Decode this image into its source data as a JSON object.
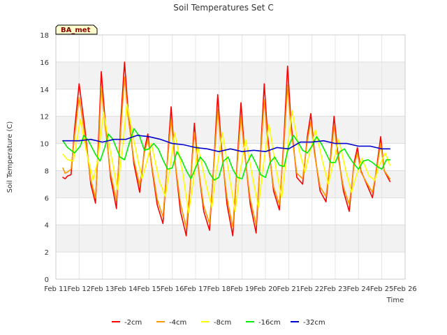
{
  "chart_data": {
    "type": "line",
    "title": "Soil Temperatures Set C",
    "xlabel": "Time",
    "ylabel": "Soil Temperature (C)",
    "badge": "BA_met",
    "ylim": [
      0,
      18
    ],
    "yticks": [
      0,
      2,
      4,
      6,
      8,
      10,
      12,
      14,
      16,
      18
    ],
    "xlim": [
      11,
      26
    ],
    "xticks": [
      {
        "x": 11,
        "label": "Feb 11"
      },
      {
        "x": 12,
        "label": "Feb 12"
      },
      {
        "x": 13,
        "label": "Feb 13"
      },
      {
        "x": 14,
        "label": "Feb 14"
      },
      {
        "x": 15,
        "label": "Feb 15"
      },
      {
        "x": 16,
        "label": "Feb 16"
      },
      {
        "x": 17,
        "label": "Feb 17"
      },
      {
        "x": 18,
        "label": "Feb 18"
      },
      {
        "x": 19,
        "label": "Feb 19"
      },
      {
        "x": 20,
        "label": "Feb 20"
      },
      {
        "x": 21,
        "label": "Feb 21"
      },
      {
        "x": 22,
        "label": "Feb 22"
      },
      {
        "x": 23,
        "label": "Feb 23"
      },
      {
        "x": 24,
        "label": "Feb 24"
      },
      {
        "x": 25,
        "label": "Feb 25"
      },
      {
        "x": 26,
        "label": "Feb 26"
      }
    ],
    "grid": true,
    "legend_position": "bottom",
    "series": [
      {
        "name": "-2cm",
        "color": "#ff0000",
        "x": [
          11.3,
          11.4,
          11.5,
          11.65,
          11.8,
          12.0,
          12.25,
          12.5,
          12.7,
          12.85,
          12.95,
          13.1,
          13.35,
          13.6,
          13.8,
          13.95,
          14.1,
          14.35,
          14.6,
          14.8,
          14.95,
          15.1,
          15.35,
          15.6,
          15.8,
          15.95,
          16.1,
          16.35,
          16.6,
          16.8,
          16.95,
          17.1,
          17.35,
          17.6,
          17.8,
          17.95,
          18.1,
          18.35,
          18.6,
          18.8,
          18.95,
          19.1,
          19.35,
          19.6,
          19.8,
          19.95,
          20.1,
          20.35,
          20.6,
          20.8,
          20.95,
          21.1,
          21.35,
          21.6,
          21.8,
          21.95,
          22.1,
          22.35,
          22.6,
          22.8,
          22.95,
          23.1,
          23.35,
          23.6,
          23.8,
          23.95,
          24.1,
          24.35,
          24.6,
          24.8,
          24.95,
          25.1,
          25.35
        ],
        "y": [
          7.5,
          7.4,
          7.6,
          7.7,
          11.0,
          14.4,
          11.0,
          7.0,
          5.6,
          11.0,
          15.3,
          12.0,
          7.5,
          5.2,
          12.0,
          16.0,
          12.5,
          8.5,
          6.4,
          9.5,
          10.7,
          8.5,
          5.5,
          4.1,
          9.0,
          12.7,
          9.0,
          5.0,
          3.2,
          7.5,
          11.5,
          8.5,
          5.0,
          3.6,
          9.0,
          13.6,
          10.0,
          5.5,
          3.2,
          9.0,
          13.0,
          9.5,
          5.5,
          3.4,
          9.5,
          14.4,
          10.5,
          6.5,
          5.1,
          10.5,
          15.7,
          11.5,
          7.5,
          7.0,
          10.5,
          12.2,
          9.5,
          6.5,
          5.7,
          9.0,
          12.0,
          9.5,
          6.5,
          5.0,
          8.5,
          9.7,
          8.0,
          7.0,
          6.0,
          8.5,
          10.5,
          8.0,
          7.2
        ]
      },
      {
        "name": "-4cm",
        "color": "#ff9900",
        "x": [
          11.3,
          11.4,
          11.5,
          11.65,
          11.8,
          12.0,
          12.25,
          12.5,
          12.7,
          12.85,
          12.95,
          13.1,
          13.35,
          13.6,
          13.8,
          13.95,
          14.1,
          14.35,
          14.6,
          14.8,
          14.95,
          15.1,
          15.35,
          15.6,
          15.8,
          15.95,
          16.1,
          16.35,
          16.6,
          16.8,
          16.95,
          17.1,
          17.35,
          17.6,
          17.8,
          17.95,
          18.1,
          18.35,
          18.6,
          18.8,
          18.95,
          19.1,
          19.35,
          19.6,
          19.8,
          19.95,
          20.1,
          20.35,
          20.6,
          20.8,
          20.95,
          21.1,
          21.35,
          21.6,
          21.8,
          21.95,
          22.1,
          22.35,
          22.6,
          22.8,
          22.95,
          23.1,
          23.35,
          23.6,
          23.8,
          23.95,
          24.1,
          24.35,
          24.6,
          24.8,
          24.95,
          25.1,
          25.35
        ],
        "y": [
          8.2,
          7.8,
          7.9,
          8.1,
          10.5,
          13.4,
          10.5,
          7.3,
          6.0,
          10.3,
          14.2,
          11.5,
          7.8,
          5.8,
          11.3,
          14.9,
          12.0,
          8.8,
          6.9,
          9.3,
          10.3,
          8.6,
          5.9,
          4.6,
          8.8,
          11.8,
          8.9,
          5.6,
          3.8,
          7.5,
          10.8,
          8.4,
          5.4,
          4.1,
          8.8,
          12.5,
          9.6,
          6.0,
          3.8,
          8.7,
          12.0,
          9.3,
          5.9,
          4.0,
          9.2,
          13.2,
          10.0,
          6.8,
          5.5,
          10.0,
          14.3,
          11.0,
          7.8,
          7.4,
          10.2,
          11.6,
          9.3,
          6.8,
          6.1,
          8.8,
          11.3,
          9.2,
          6.8,
          5.5,
          8.3,
          9.3,
          7.9,
          7.1,
          6.4,
          8.3,
          10.0,
          8.0,
          7.4
        ]
      },
      {
        "name": "-8cm",
        "color": "#ffff00",
        "x": [
          11.3,
          11.5,
          11.75,
          12.05,
          12.3,
          12.6,
          12.8,
          13.05,
          13.3,
          13.65,
          13.85,
          14.05,
          14.35,
          14.7,
          14.9,
          15.1,
          15.45,
          15.7,
          15.9,
          16.1,
          16.45,
          16.7,
          16.9,
          17.1,
          17.45,
          17.7,
          17.9,
          18.15,
          18.45,
          18.7,
          18.9,
          19.15,
          19.45,
          19.7,
          19.9,
          20.15,
          20.45,
          20.7,
          20.9,
          21.15,
          21.45,
          21.7,
          21.9,
          22.15,
          22.45,
          22.7,
          22.9,
          23.15,
          23.45,
          23.7,
          23.9,
          24.15,
          24.45,
          24.7,
          24.9,
          25.15,
          25.35
        ],
        "y": [
          9.2,
          8.8,
          8.7,
          11.8,
          9.5,
          7.3,
          8.8,
          12.3,
          9.8,
          6.6,
          9.5,
          12.9,
          10.2,
          7.4,
          8.6,
          10.0,
          7.2,
          6.1,
          8.2,
          10.8,
          7.8,
          4.9,
          7.2,
          9.8,
          7.0,
          5.3,
          8.0,
          10.8,
          7.6,
          5.0,
          7.8,
          10.3,
          7.5,
          5.3,
          8.3,
          11.4,
          8.2,
          6.0,
          9.0,
          12.4,
          9.5,
          7.9,
          9.3,
          11.0,
          8.7,
          7.0,
          8.5,
          10.3,
          8.0,
          6.4,
          7.6,
          8.9,
          7.6,
          7.3,
          8.4,
          9.3,
          8.4
        ]
      },
      {
        "name": "-16cm",
        "color": "#00ee00",
        "x": [
          11.3,
          11.5,
          11.8,
          12.05,
          12.2,
          12.4,
          12.7,
          12.9,
          13.1,
          13.25,
          13.45,
          13.75,
          13.95,
          14.15,
          14.35,
          14.6,
          14.8,
          15.0,
          15.2,
          15.4,
          15.6,
          15.8,
          16.0,
          16.2,
          16.4,
          16.6,
          16.8,
          17.0,
          17.2,
          17.4,
          17.6,
          17.8,
          18.0,
          18.2,
          18.4,
          18.6,
          18.8,
          19.0,
          19.2,
          19.4,
          19.6,
          19.8,
          20.0,
          20.2,
          20.4,
          20.6,
          20.8,
          21.0,
          21.2,
          21.4,
          21.6,
          21.8,
          22.0,
          22.2,
          22.4,
          22.6,
          22.8,
          23.0,
          23.2,
          23.4,
          23.6,
          23.8,
          24.0,
          24.2,
          24.4,
          24.6,
          24.8,
          25.0,
          25.2,
          25.35
        ],
        "y": [
          10.2,
          9.7,
          9.3,
          9.8,
          10.6,
          10.2,
          9.2,
          8.7,
          9.7,
          10.7,
          10.3,
          9.0,
          8.8,
          10.0,
          11.1,
          10.5,
          9.5,
          9.6,
          10.0,
          9.6,
          8.8,
          8.1,
          8.2,
          9.4,
          8.8,
          8.0,
          7.4,
          8.2,
          9.0,
          8.6,
          7.8,
          7.3,
          7.5,
          8.7,
          9.0,
          8.1,
          7.5,
          7.4,
          8.5,
          9.2,
          8.5,
          7.7,
          7.5,
          8.6,
          9.0,
          8.4,
          8.3,
          9.8,
          10.6,
          10.1,
          9.5,
          9.3,
          9.8,
          10.5,
          10.0,
          9.3,
          8.6,
          8.6,
          9.4,
          9.6,
          9.0,
          8.5,
          8.1,
          8.7,
          8.8,
          8.6,
          8.3,
          8.1,
          8.8,
          8.8
        ]
      },
      {
        "name": "-32cm",
        "color": "#0000cc",
        "x": [
          11.3,
          11.6,
          12.0,
          12.5,
          13.0,
          13.5,
          14.0,
          14.5,
          15.0,
          15.5,
          16.0,
          16.5,
          17.0,
          17.5,
          18.0,
          18.5,
          19.0,
          19.5,
          20.0,
          20.5,
          21.0,
          21.5,
          22.0,
          22.5,
          23.0,
          23.5,
          24.0,
          24.5,
          25.0,
          25.35
        ],
        "y": [
          10.2,
          10.2,
          10.2,
          10.3,
          10.1,
          10.3,
          10.3,
          10.6,
          10.5,
          10.3,
          10.0,
          9.9,
          9.7,
          9.6,
          9.4,
          9.6,
          9.4,
          9.5,
          9.4,
          9.7,
          9.6,
          10.1,
          10.1,
          10.2,
          10.0,
          10.0,
          9.8,
          9.8,
          9.6,
          9.6
        ]
      }
    ]
  }
}
